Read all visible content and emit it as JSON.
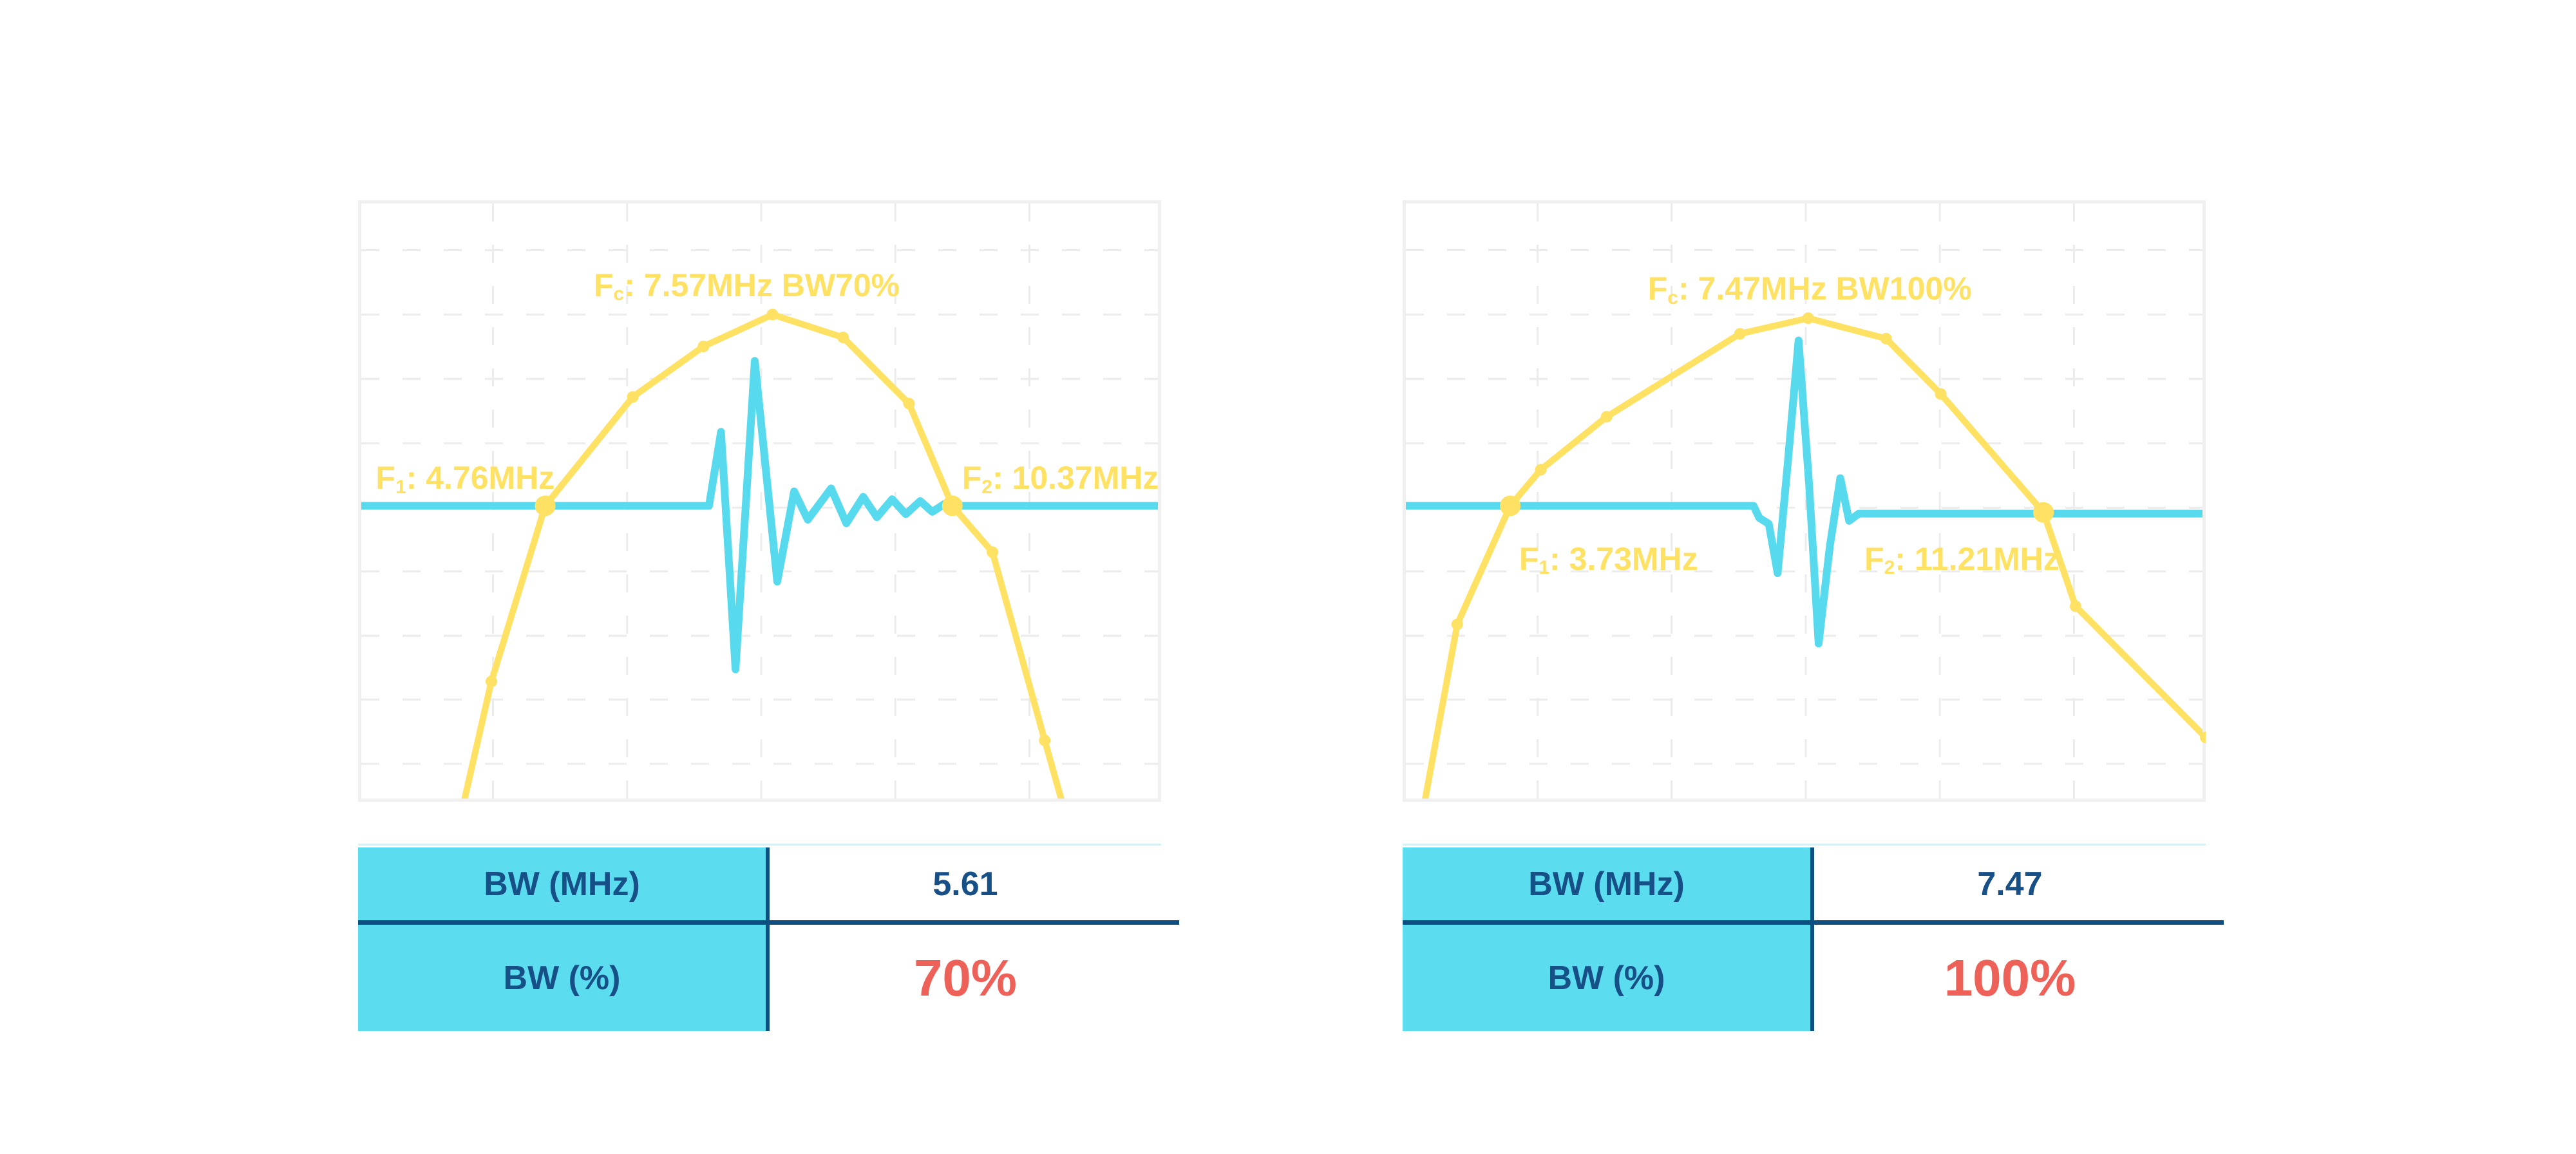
{
  "colors": {
    "yellow": "#FFE263",
    "cyan": "#57DAEE",
    "table_label_bg": "#5CDDEF",
    "navy": "#174F87",
    "divider": "#0E4E81",
    "red": "#EE6158",
    "chart_border": "#F0F0F0",
    "grid": "#ECECEC",
    "table_top_line": "#D9EFF6",
    "background": "#FFFFFF"
  },
  "chart_data": [
    {
      "type": "line",
      "id": "bw70",
      "center_frequency_mhz": 7.57,
      "f1_mhz": 4.76,
      "f2_mhz": 10.37,
      "bw_mhz": 5.61,
      "bw_percent": 70,
      "annotations": {
        "fc": {
          "pre": "F",
          "sub": "c",
          "post": ": 7.57MHz BW70%",
          "x": 0.484,
          "y": 0.112,
          "align": "center"
        },
        "f1": {
          "pre": "F",
          "sub": "1",
          "post": ": 4.76MHz",
          "x": 0.022,
          "y": 0.433,
          "align": "left"
        },
        "f2": {
          "pre": "F",
          "sub": "2",
          "post": ": 10.37MHz",
          "x": 0.752,
          "y": 0.433,
          "align": "left"
        }
      },
      "layout": {
        "grid_x": [
          0.168,
          0.335,
          0.502,
          0.669,
          0.836
        ],
        "grid_y": [
          0.083,
          0.19,
          0.297,
          0.404,
          0.511,
          0.617,
          0.724,
          0.83,
          0.937
        ],
        "baseline_y": 0.508
      },
      "series": [
        {
          "name": "spectrum",
          "color_key": "yellow",
          "width": 10,
          "points": [
            [
              0.125,
              1.04
            ],
            [
              0.166,
              0.8
            ],
            [
              0.233,
              0.508
            ],
            [
              0.342,
              0.327
            ],
            [
              0.43,
              0.243
            ],
            [
              0.516,
              0.19
            ],
            [
              0.604,
              0.228
            ],
            [
              0.686,
              0.338
            ],
            [
              0.74,
              0.508
            ],
            [
              0.79,
              0.585
            ],
            [
              0.855,
              0.898
            ],
            [
              0.885,
              1.04
            ]
          ],
          "dots": [
            [
              0.166,
              0.8,
              9
            ],
            [
              0.233,
              0.508,
              16
            ],
            [
              0.342,
              0.327,
              9
            ],
            [
              0.43,
              0.243,
              9
            ],
            [
              0.516,
              0.19,
              9
            ],
            [
              0.604,
              0.228,
              9
            ],
            [
              0.686,
              0.338,
              9
            ],
            [
              0.74,
              0.508,
              16
            ],
            [
              0.79,
              0.585,
              9
            ],
            [
              0.855,
              0.898,
              9
            ]
          ]
        },
        {
          "name": "pulse",
          "color_key": "cyan",
          "width": 12,
          "points": [
            [
              0.002,
              0.508
            ],
            [
              0.437,
              0.508
            ],
            [
              0.452,
              0.385
            ],
            [
              0.47,
              0.78
            ],
            [
              0.494,
              0.267
            ],
            [
              0.522,
              0.634
            ],
            [
              0.543,
              0.484
            ],
            [
              0.56,
              0.531
            ],
            [
              0.589,
              0.479
            ],
            [
              0.608,
              0.537
            ],
            [
              0.629,
              0.493
            ],
            [
              0.646,
              0.527
            ],
            [
              0.665,
              0.497
            ],
            [
              0.682,
              0.522
            ],
            [
              0.7,
              0.5
            ],
            [
              0.715,
              0.518
            ],
            [
              0.73,
              0.505
            ],
            [
              0.74,
              0.508
            ],
            [
              0.998,
              0.508
            ]
          ],
          "dots": []
        }
      ],
      "table": {
        "rows": [
          {
            "label": "BW (MHz)",
            "value": "5.61",
            "style": "navy"
          },
          {
            "label": "BW (%)",
            "value": "70%",
            "style": "red"
          }
        ]
      }
    },
    {
      "type": "line",
      "id": "bw100",
      "center_frequency_mhz": 7.47,
      "f1_mhz": 3.73,
      "f2_mhz": 11.21,
      "bw_mhz": 7.47,
      "bw_percent": 100,
      "annotations": {
        "fc": {
          "pre": "F",
          "sub": "c",
          "post": ": 7.47MHz BW100%",
          "x": 0.507,
          "y": 0.118,
          "align": "center"
        },
        "f1": {
          "pre": "F",
          "sub": "1",
          "post": ": 3.73MHz",
          "x": 0.145,
          "y": 0.567,
          "align": "left"
        },
        "f2": {
          "pre": "F",
          "sub": "2",
          "post": ": 11.21MHz",
          "x": 0.575,
          "y": 0.567,
          "align": "left"
        }
      },
      "layout": {
        "grid_x": [
          0.168,
          0.335,
          0.502,
          0.669,
          0.836
        ],
        "grid_y": [
          0.083,
          0.19,
          0.297,
          0.404,
          0.511,
          0.617,
          0.724,
          0.83,
          0.937
        ],
        "baseline_y": 0.508
      },
      "series": [
        {
          "name": "spectrum",
          "color_key": "yellow",
          "width": 10,
          "points": [
            [
              0.022,
              1.04
            ],
            [
              0.068,
              0.705
            ],
            [
              0.134,
              0.508
            ],
            [
              0.172,
              0.448
            ],
            [
              0.254,
              0.36
            ],
            [
              0.42,
              0.222
            ],
            [
              0.505,
              0.196
            ],
            [
              0.602,
              0.23
            ],
            [
              0.67,
              0.322
            ],
            [
              0.798,
              0.519
            ],
            [
              0.838,
              0.675
            ],
            [
              1.0,
              0.893
            ]
          ],
          "dots": [
            [
              0.068,
              0.705,
              9
            ],
            [
              0.134,
              0.508,
              16
            ],
            [
              0.172,
              0.448,
              9
            ],
            [
              0.254,
              0.36,
              9
            ],
            [
              0.42,
              0.222,
              9
            ],
            [
              0.505,
              0.196,
              9
            ],
            [
              0.602,
              0.23,
              9
            ],
            [
              0.67,
              0.322,
              9
            ],
            [
              0.798,
              0.519,
              16
            ],
            [
              0.838,
              0.675,
              9
            ],
            [
              1.0,
              0.893,
              9
            ]
          ]
        },
        {
          "name": "pulse",
          "color_key": "cyan",
          "width": 12,
          "points": [
            [
              0.002,
              0.508
            ],
            [
              0.437,
              0.508
            ],
            [
              0.444,
              0.528
            ],
            [
              0.456,
              0.538
            ],
            [
              0.467,
              0.62
            ],
            [
              0.48,
              0.43
            ],
            [
              0.493,
              0.233
            ],
            [
              0.506,
              0.47
            ],
            [
              0.518,
              0.737
            ],
            [
              0.532,
              0.575
            ],
            [
              0.545,
              0.462
            ],
            [
              0.556,
              0.533
            ],
            [
              0.568,
              0.521
            ],
            [
              0.998,
              0.521
            ]
          ],
          "dots": []
        }
      ],
      "table": {
        "rows": [
          {
            "label": "BW (MHz)",
            "value": "7.47",
            "style": "navy"
          },
          {
            "label": "BW (%)",
            "value": "100%",
            "style": "red"
          }
        ]
      }
    }
  ]
}
